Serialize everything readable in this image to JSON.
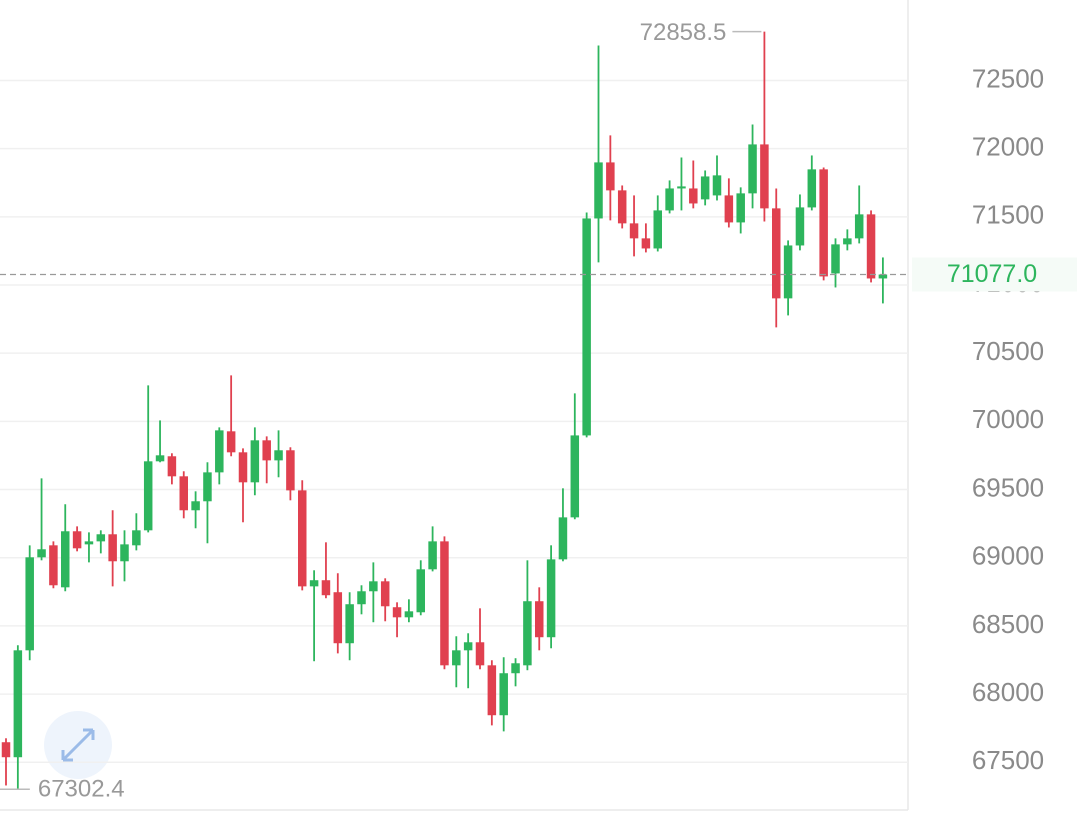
{
  "chart_data": {
    "type": "candlestick",
    "up_color": "#2db55d",
    "down_color": "#e0404f",
    "ylim": [
      67150,
      73090
    ],
    "yticks": [
      67500,
      68000,
      68500,
      69000,
      69500,
      70000,
      70500,
      71000,
      71500,
      72000,
      72500
    ],
    "grid": true,
    "open": [
      67647,
      67537,
      68321,
      69003,
      69091,
      68783,
      69194,
      69098,
      69120,
      69172,
      68974,
      69091,
      69201,
      69707,
      69744,
      69597,
      69348,
      69414,
      69626,
      69927,
      69773,
      69553,
      69861,
      69714,
      69788,
      69494,
      68790,
      68835,
      68747,
      68373,
      68659,
      68754,
      68827,
      68637,
      68563,
      68600,
      68915,
      69120,
      68211,
      68321,
      68380,
      68211,
      67845,
      68153,
      68211,
      68681,
      68417,
      68988,
      69296,
      69897,
      71488,
      71899,
      71694,
      71452,
      71342,
      71268,
      71547,
      71708,
      71708,
      71628,
      71657,
      71657,
      71459,
      71672,
      72031,
      71562,
      70902,
      71290,
      71569,
      71848,
      71085,
      71298,
      71342,
      71518,
      71048
    ],
    "high": [
      67676,
      68358,
      69091,
      69582,
      69120,
      69392,
      69230,
      69186,
      69201,
      69348,
      69201,
      69326,
      70264,
      70007,
      69766,
      69634,
      69487,
      69700,
      69956,
      70337,
      69802,
      69956,
      69890,
      69934,
      69810,
      69568,
      68908,
      69113,
      68886,
      68747,
      68798,
      68966,
      68849,
      68673,
      68695,
      68981,
      69230,
      69157,
      68424,
      68446,
      68629,
      68248,
      68270,
      68263,
      68981,
      68783,
      69091,
      69509,
      70205,
      71532,
      72756,
      72097,
      71730,
      71657,
      71452,
      71657,
      71767,
      71935,
      71913,
      71840,
      71950,
      71782,
      71716,
      72177,
      72858.5,
      71708,
      71327,
      71664,
      71950,
      71862,
      71342,
      71408,
      71730,
      71547,
      71202
    ],
    "low": [
      67330,
      67302.4,
      68248,
      68981,
      68776,
      68754,
      69047,
      68966,
      69032,
      68790,
      68827,
      69054,
      69186,
      69700,
      69538,
      69289,
      69216,
      69106,
      69538,
      69744,
      69260,
      69458,
      69546,
      69590,
      69421,
      68761,
      68241,
      68703,
      68299,
      68248,
      68585,
      68527,
      68534,
      68417,
      68527,
      68578,
      68900,
      68182,
      68050,
      68043,
      68182,
      67771,
      67727,
      68057,
      68175,
      68321,
      68336,
      68974,
      69282,
      69883,
      71166,
      71474,
      71415,
      71210,
      71239,
      71246,
      71525,
      71547,
      71562,
      71584,
      71620,
      71422,
      71378,
      71562,
      71466,
      70689,
      70777,
      71254,
      71547,
      71034,
      70982,
      71254,
      71305,
      71019,
      70865
    ],
    "close": [
      67537,
      68321,
      69003,
      69062,
      68798,
      69194,
      69069,
      69120,
      69172,
      68974,
      69098,
      69201,
      69707,
      69751,
      69597,
      69348,
      69414,
      69626,
      69934,
      69773,
      69553,
      69861,
      69714,
      69788,
      69494,
      68790,
      68835,
      68725,
      68373,
      68659,
      68754,
      68827,
      68644,
      68563,
      68607,
      68915,
      69120,
      68211,
      68321,
      68380,
      68211,
      67845,
      68153,
      68226,
      68681,
      68417,
      68988,
      69296,
      69897,
      71488,
      71899,
      71694,
      71452,
      71342,
      71268,
      71547,
      71708,
      71723,
      71598,
      71796,
      71804,
      71459,
      71672,
      72031,
      71562,
      70902,
      71290,
      71569,
      71848,
      71063,
      71298,
      71342,
      71518,
      71048,
      71077
    ],
    "current_price": {
      "value": 71077,
      "label": "71077.0"
    }
  }
}
